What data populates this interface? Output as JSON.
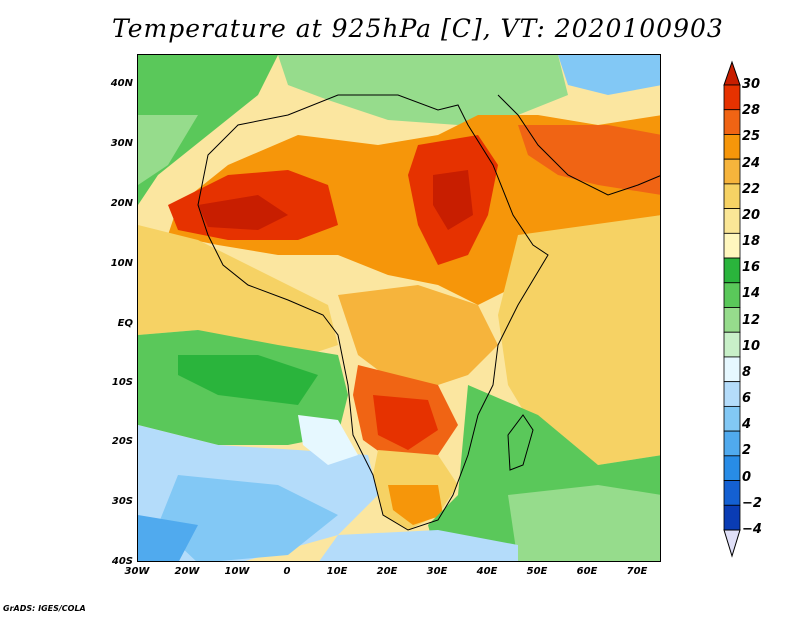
{
  "title": "Temperature at 925hPa [C], VT: 2020100903",
  "credit": "GrADS: IGES/COLA",
  "map": {
    "lon_range": [
      -30,
      75
    ],
    "lat_range": [
      -40,
      45
    ],
    "lat_ticks": [
      "40N",
      "30N",
      "20N",
      "10N",
      "EQ",
      "10S",
      "20S",
      "30S",
      "40S"
    ],
    "lon_ticks": [
      "30W",
      "20W",
      "10W",
      "0",
      "10E",
      "20E",
      "30E",
      "40E",
      "50E",
      "60E",
      "70E"
    ]
  },
  "colorbar": {
    "labels": [
      "30",
      "28",
      "25",
      "24",
      "22",
      "20",
      "18",
      "16",
      "14",
      "12",
      "10",
      "8",
      "6",
      "4",
      "2",
      "0",
      "−2",
      "−4"
    ],
    "colors": [
      "#c81e00",
      "#e63200",
      "#f06414",
      "#f6960a",
      "#f6b43c",
      "#f6d264",
      "#fae696",
      "#fff7be",
      "#2ab43c",
      "#5ac85a",
      "#96dc8c",
      "#c8f0c8",
      "#e6f8ff",
      "#b4dcfa",
      "#82c8f5",
      "#50aaee",
      "#288ce6",
      "#1460d2",
      "#0a3cb4",
      "#000a6e"
    ]
  }
}
